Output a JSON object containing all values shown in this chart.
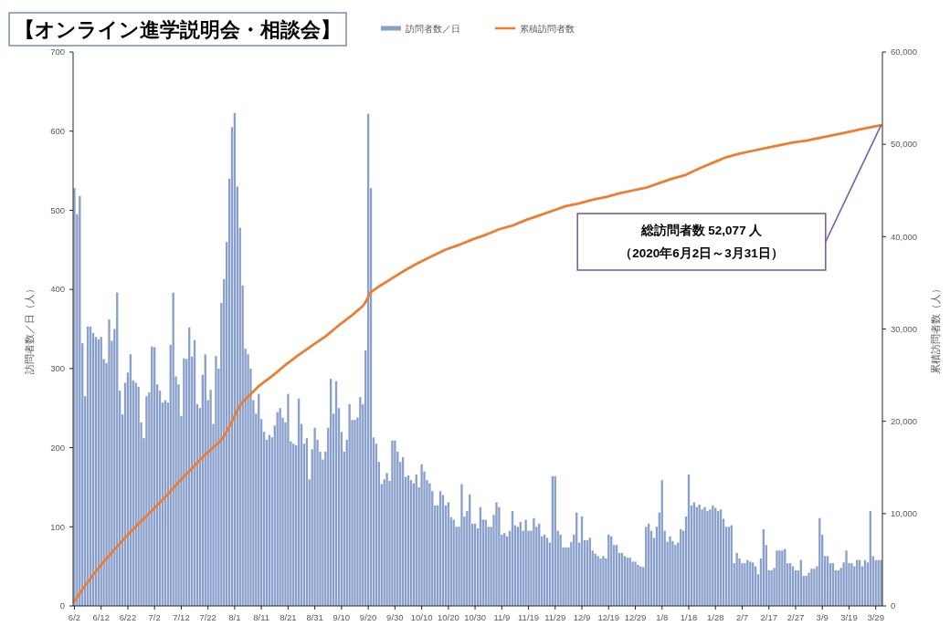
{
  "chart_data": {
    "type": "bar",
    "title": "【オンライン進学説明会・相談会】",
    "ylabel": "訪問者数／日（人）",
    "y2label": "累積訪問者数（人）",
    "x": [
      "2020-06-02",
      "2020-06-03",
      "2020-06-04",
      "2020-06-05",
      "2020-06-06",
      "2020-06-07",
      "2020-06-08",
      "2020-06-09",
      "2020-06-10",
      "2020-06-11",
      "2020-06-12",
      "2020-06-13",
      "2020-06-14",
      "2020-06-15",
      "2020-06-16",
      "2020-06-17",
      "2020-06-18",
      "2020-06-19",
      "2020-06-20",
      "2020-06-21",
      "2020-06-22",
      "2020-06-23",
      "2020-06-24",
      "2020-06-25",
      "2020-06-26",
      "2020-06-27",
      "2020-06-28",
      "2020-06-29",
      "2020-06-30",
      "2020-07-01",
      "2020-07-02",
      "2020-07-03",
      "2020-07-04",
      "2020-07-05",
      "2020-07-06",
      "2020-07-07",
      "2020-07-08",
      "2020-07-09",
      "2020-07-10",
      "2020-07-11",
      "2020-07-12",
      "2020-07-13",
      "2020-07-14",
      "2020-07-15",
      "2020-07-16",
      "2020-07-17",
      "2020-07-18",
      "2020-07-19",
      "2020-07-20",
      "2020-07-21",
      "2020-07-22",
      "2020-07-23",
      "2020-07-24",
      "2020-07-25",
      "2020-07-26",
      "2020-07-27",
      "2020-07-28",
      "2020-07-29",
      "2020-07-30",
      "2020-07-31",
      "2020-08-01",
      "2020-08-02",
      "2020-08-03",
      "2020-08-04",
      "2020-08-05",
      "2020-08-06",
      "2020-08-07",
      "2020-08-08",
      "2020-08-09",
      "2020-08-10",
      "2020-08-11",
      "2020-08-12",
      "2020-08-13",
      "2020-08-14",
      "2020-08-15",
      "2020-08-16",
      "2020-08-17",
      "2020-08-18",
      "2020-08-19",
      "2020-08-20",
      "2020-08-21",
      "2020-08-22",
      "2020-08-23",
      "2020-08-24",
      "2020-08-25",
      "2020-08-26",
      "2020-08-27",
      "2020-08-28",
      "2020-08-29",
      "2020-08-30",
      "2020-08-31",
      "2020-09-01",
      "2020-09-02",
      "2020-09-03",
      "2020-09-04",
      "2020-09-05",
      "2020-09-06",
      "2020-09-07",
      "2020-09-08",
      "2020-09-09",
      "2020-09-10",
      "2020-09-11",
      "2020-09-12",
      "2020-09-13",
      "2020-09-14",
      "2020-09-15",
      "2020-09-16",
      "2020-09-17",
      "2020-09-18",
      "2020-09-19",
      "2020-09-20",
      "2020-09-21",
      "2020-09-22",
      "2020-09-23",
      "2020-09-24",
      "2020-09-25",
      "2020-09-26",
      "2020-09-27",
      "2020-09-28",
      "2020-09-29",
      "2020-09-30",
      "2020-10-01",
      "2020-10-02",
      "2020-10-03",
      "2020-10-04",
      "2020-10-05",
      "2020-10-06",
      "2020-10-07",
      "2020-10-08",
      "2020-10-09",
      "2020-10-10",
      "2020-10-11",
      "2020-10-12",
      "2020-10-13",
      "2020-10-14",
      "2020-10-15",
      "2020-10-16",
      "2020-10-17",
      "2020-10-18",
      "2020-10-19",
      "2020-10-20",
      "2020-10-21",
      "2020-10-22",
      "2020-10-23",
      "2020-10-24",
      "2020-10-25",
      "2020-10-26",
      "2020-10-27",
      "2020-10-28",
      "2020-10-29",
      "2020-10-30",
      "2020-10-31",
      "2020-11-01",
      "2020-11-02",
      "2020-11-03",
      "2020-11-04",
      "2020-11-05",
      "2020-11-06",
      "2020-11-07",
      "2020-11-08",
      "2020-11-09",
      "2020-11-10",
      "2020-11-11",
      "2020-11-12",
      "2020-11-13",
      "2020-11-14",
      "2020-11-15",
      "2020-11-16",
      "2020-11-17",
      "2020-11-18",
      "2020-11-19",
      "2020-11-20",
      "2020-11-21",
      "2020-11-22",
      "2020-11-23",
      "2020-11-24",
      "2020-11-25",
      "2020-11-26",
      "2020-11-27",
      "2020-11-28",
      "2020-11-29",
      "2020-11-30",
      "2020-12-01",
      "2020-12-02",
      "2020-12-03",
      "2020-12-04",
      "2020-12-05",
      "2020-12-06",
      "2020-12-07",
      "2020-12-08",
      "2020-12-09",
      "2020-12-10",
      "2020-12-11",
      "2020-12-12",
      "2020-12-13",
      "2020-12-14",
      "2020-12-15",
      "2020-12-16",
      "2020-12-17",
      "2020-12-18",
      "2020-12-19",
      "2020-12-20",
      "2020-12-21",
      "2020-12-22",
      "2020-12-23",
      "2020-12-24",
      "2020-12-25",
      "2020-12-26",
      "2020-12-27",
      "2020-12-28",
      "2020-12-29",
      "2020-12-30",
      "2020-12-31",
      "2021-01-01",
      "2021-01-02",
      "2021-01-03",
      "2021-01-04",
      "2021-01-05",
      "2021-01-06",
      "2021-01-07",
      "2021-01-08",
      "2021-01-09",
      "2021-01-10",
      "2021-01-11",
      "2021-01-12",
      "2021-01-13",
      "2021-01-14",
      "2021-01-15",
      "2021-01-16",
      "2021-01-17",
      "2021-01-18",
      "2021-01-19",
      "2021-01-20",
      "2021-01-21",
      "2021-01-22",
      "2021-01-23",
      "2021-01-24",
      "2021-01-25",
      "2021-01-26",
      "2021-01-27",
      "2021-01-28",
      "2021-01-29",
      "2021-01-30",
      "2021-01-31",
      "2021-02-01",
      "2021-02-02",
      "2021-02-03",
      "2021-02-04",
      "2021-02-05",
      "2021-02-06",
      "2021-02-07",
      "2021-02-08",
      "2021-02-09",
      "2021-02-10",
      "2021-02-11",
      "2021-02-12",
      "2021-02-13",
      "2021-02-14",
      "2021-02-15",
      "2021-02-16",
      "2021-02-17",
      "2021-02-18",
      "2021-02-19",
      "2021-02-20",
      "2021-02-21",
      "2021-02-22",
      "2021-02-23",
      "2021-02-24",
      "2021-02-25",
      "2021-02-26",
      "2021-02-27",
      "2021-02-28",
      "2021-03-01",
      "2021-03-02",
      "2021-03-03",
      "2021-03-04",
      "2021-03-05",
      "2021-03-06",
      "2021-03-07",
      "2021-03-08",
      "2021-03-09",
      "2021-03-10",
      "2021-03-11",
      "2021-03-12",
      "2021-03-13",
      "2021-03-14",
      "2021-03-15",
      "2021-03-16",
      "2021-03-17",
      "2021-03-18",
      "2021-03-19",
      "2021-03-20",
      "2021-03-21",
      "2021-03-22",
      "2021-03-23",
      "2021-03-24",
      "2021-03-25",
      "2021-03-26",
      "2021-03-27",
      "2021-03-28",
      "2021-03-29",
      "2021-03-30",
      "2021-03-31"
    ],
    "xlim": [
      "2020-06-01T12:00",
      "2021-03-31T12:00"
    ],
    "xticks": [
      {
        "value": "2020-06-02",
        "label": "6/2"
      },
      {
        "value": "2020-06-12",
        "label": "6/12"
      },
      {
        "value": "2020-06-22",
        "label": "6/22"
      },
      {
        "value": "2020-07-02",
        "label": "7/2"
      },
      {
        "value": "2020-07-12",
        "label": "7/12"
      },
      {
        "value": "2020-07-22",
        "label": "7/22"
      },
      {
        "value": "2020-08-01",
        "label": "8/1"
      },
      {
        "value": "2020-08-11",
        "label": "8/11"
      },
      {
        "value": "2020-08-21",
        "label": "8/21"
      },
      {
        "value": "2020-08-31",
        "label": "8/31"
      },
      {
        "value": "2020-09-10",
        "label": "9/10"
      },
      {
        "value": "2020-09-20",
        "label": "9/20"
      },
      {
        "value": "2020-09-30",
        "label": "9/30"
      },
      {
        "value": "2020-10-10",
        "label": "10/10"
      },
      {
        "value": "2020-10-20",
        "label": "10/20"
      },
      {
        "value": "2020-10-30",
        "label": "10/30"
      },
      {
        "value": "2020-11-09",
        "label": "11/9"
      },
      {
        "value": "2020-11-19",
        "label": "11/19"
      },
      {
        "value": "2020-11-29",
        "label": "11/29"
      },
      {
        "value": "2020-12-09",
        "label": "12/9"
      },
      {
        "value": "2020-12-19",
        "label": "12/19"
      },
      {
        "value": "2020-12-29",
        "label": "12/29"
      },
      {
        "value": "2021-01-08",
        "label": "1/8"
      },
      {
        "value": "2021-01-18",
        "label": "1/18"
      },
      {
        "value": "2021-01-28",
        "label": "1/28"
      },
      {
        "value": "2021-02-07",
        "label": "2/7"
      },
      {
        "value": "2021-02-17",
        "label": "2/17"
      },
      {
        "value": "2021-02-27",
        "label": "2/27"
      },
      {
        "value": "2021-03-09",
        "label": "3/9"
      },
      {
        "value": "2021-03-19",
        "label": "3/19"
      },
      {
        "value": "2021-03-29",
        "label": "3/29"
      }
    ],
    "ylim": [
      0,
      700
    ],
    "yticks": [
      0,
      100,
      200,
      300,
      400,
      500,
      600,
      700
    ],
    "y2lim": [
      0,
      60000
    ],
    "y2ticks": [
      0,
      {
        "value": 10000,
        "label": "10,000"
      },
      {
        "value": 20000,
        "label": "20,000"
      },
      {
        "value": 30000,
        "label": "30,000"
      },
      {
        "value": 40000,
        "label": "40,000"
      },
      {
        "value": 50000,
        "label": "50,000"
      },
      {
        "value": 60000,
        "label": "60,000"
      }
    ],
    "series": [
      {
        "name": "訪問者数／日",
        "color": "#8aa0cc",
        "values": [
          528,
          495,
          518,
          332,
          265,
          353,
          353,
          345,
          340,
          337,
          340,
          312,
          307,
          362,
          335,
          350,
          396,
          272,
          242,
          282,
          295,
          318,
          285,
          282,
          277,
          232,
          212,
          265,
          270,
          328,
          327,
          280,
          272,
          257,
          260,
          257,
          330,
          396,
          290,
          280,
          240,
          313,
          312,
          352,
          315,
          336,
          255,
          250,
          292,
          318,
          260,
          273,
          230,
          316,
          300,
          383,
          413,
          460,
          540,
          605,
          623,
          530,
          478,
          405,
          325,
          318,
          300,
          260,
          243,
          268,
          236,
          220,
          210,
          216,
          213,
          228,
          245,
          250,
          238,
          232,
          268,
          208,
          205,
          203,
          262,
          230,
          205,
          212,
          160,
          198,
          225,
          210,
          195,
          185,
          195,
          225,
          287,
          243,
          284,
          250,
          220,
          195,
          210,
          255,
          235,
          235,
          238,
          264,
          255,
          323,
          622,
          528,
          213,
          205,
          182,
          154,
          160,
          168,
          158,
          209,
          209,
          195,
          182,
          188,
          163,
          165,
          159,
          155,
          166,
          150,
          179,
          170,
          159,
          155,
          145,
          127,
          127,
          145,
          140,
          127,
          131,
          112,
          109,
          100,
          100,
          154,
          113,
          120,
          141,
          104,
          104,
          98,
          125,
          109,
          109,
          100,
          100,
          115,
          131,
          125,
          90,
          92,
          88,
          95,
          120,
          102,
          100,
          106,
          95,
          109,
          95,
          95,
          111,
          100,
          104,
          88,
          90,
          86,
          80,
          164,
          164,
          95,
          90,
          74,
          74,
          74,
          81,
          90,
          118,
          80,
          113,
          83,
          83,
          86,
          70,
          66,
          63,
          60,
          63,
          60,
          90,
          88,
          77,
          77,
          67,
          67,
          63,
          61,
          61,
          56,
          56,
          52,
          50,
          49,
          100,
          104,
          95,
          86,
          100,
          118,
          159,
          95,
          81,
          88,
          82,
          77,
          80,
          97,
          95,
          113,
          166,
          127,
          131,
          125,
          128,
          122,
          125,
          120,
          122,
          127,
          124,
          120,
          122,
          110,
          100,
          100,
          102,
          54,
          67,
          60,
          54,
          54,
          58,
          56,
          55,
          50,
          40,
          60,
          97,
          77,
          45,
          45,
          48,
          70,
          70,
          70,
          72,
          54,
          54,
          50,
          45,
          45,
          58,
          38,
          38,
          42,
          47,
          47,
          50,
          111,
          90,
          63,
          63,
          54,
          54,
          45,
          45,
          48,
          55,
          70,
          54,
          54,
          50,
          58,
          58,
          50,
          58,
          55,
          120,
          63,
          58,
          58,
          58
        ]
      },
      {
        "name": "累積訪問者数",
        "type": "line",
        "axis": "y2",
        "color": "#ed7d31",
        "x": [
          "2020-06-02",
          "2020-06-06",
          "2020-06-11",
          "2020-06-16",
          "2020-06-21",
          "2020-06-26",
          "2020-07-01",
          "2020-07-06",
          "2020-07-11",
          "2020-07-16",
          "2020-07-21",
          "2020-07-26",
          "2020-07-27",
          "2020-07-28",
          "2020-07-29",
          "2020-07-30",
          "2020-07-31",
          "2020-08-01",
          "2020-08-02",
          "2020-08-03",
          "2020-08-04",
          "2020-08-05",
          "2020-08-10",
          "2020-08-15",
          "2020-08-20",
          "2020-08-25",
          "2020-08-30",
          "2020-09-04",
          "2020-09-09",
          "2020-09-14",
          "2020-09-18",
          "2020-09-19",
          "2020-09-20",
          "2020-09-21",
          "2020-09-24",
          "2020-09-29",
          "2020-10-04",
          "2020-10-09",
          "2020-10-14",
          "2020-10-19",
          "2020-10-24",
          "2020-10-29",
          "2020-11-03",
          "2020-11-08",
          "2020-11-13",
          "2020-11-18",
          "2020-11-23",
          "2020-11-28",
          "2020-12-03",
          "2020-12-08",
          "2020-12-13",
          "2020-12-18",
          "2020-12-23",
          "2020-12-28",
          "2021-01-02",
          "2021-01-07",
          "2021-01-12",
          "2021-01-17",
          "2021-01-22",
          "2021-01-27",
          "2021-02-01",
          "2021-02-06",
          "2021-02-11",
          "2021-02-16",
          "2021-02-21",
          "2021-02-26",
          "2021-03-03",
          "2021-03-08",
          "2021-03-13",
          "2021-03-18",
          "2021-03-23",
          "2021-03-28",
          "2021-03-31"
        ],
        "values": [
          500,
          2200,
          4100,
          5800,
          7400,
          8900,
          10300,
          11800,
          13400,
          14900,
          16400,
          17700,
          18000,
          18400,
          18900,
          19400,
          20000,
          20600,
          21200,
          21700,
          22100,
          22400,
          23800,
          24900,
          26100,
          27200,
          28200,
          29200,
          30400,
          31500,
          32500,
          32900,
          33500,
          34000,
          34600,
          35500,
          36400,
          37200,
          37900,
          38600,
          39100,
          39700,
          40200,
          40800,
          41200,
          41800,
          42300,
          42800,
          43300,
          43600,
          44000,
          44300,
          44700,
          45000,
          45300,
          45800,
          46300,
          46700,
          47400,
          48000,
          48600,
          49000,
          49300,
          49600,
          49900,
          50200,
          50400,
          50700,
          51000,
          51300,
          51600,
          51900,
          52077
        ]
      }
    ],
    "legend": "top",
    "annotations": [
      "総訪問者数 52,077 人",
      "（2020年6月2日～3月31日）"
    ]
  }
}
